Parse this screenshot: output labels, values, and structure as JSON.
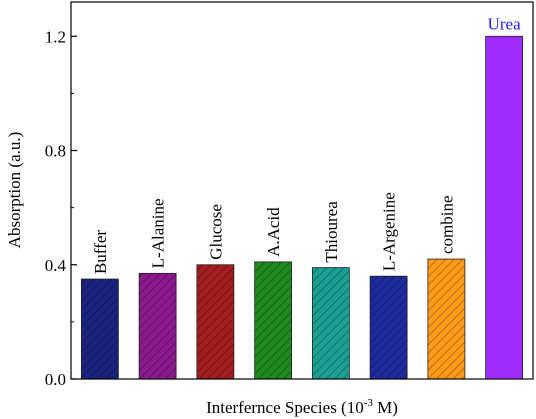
{
  "chart_data": {
    "type": "bar",
    "xlabel_parts": [
      "Interfernce Species (10",
      "-3",
      " M)"
    ],
    "ylabel": "Absorption (a.u.)",
    "ylim": [
      0,
      1.2
    ],
    "yticks": [
      "0.0",
      "0.4",
      "0.8",
      "1.2"
    ],
    "grid": false,
    "categories": [
      "Buffer",
      "L-Alanine",
      "Glucose",
      "A.Acid",
      "Thiourea",
      "L-Argenine",
      "combine",
      "Urea"
    ],
    "values": [
      0.35,
      0.37,
      0.4,
      0.41,
      0.39,
      0.36,
      0.42,
      1.2
    ],
    "colors": [
      "#1a237e",
      "#8b1a8f",
      "#a31d1d",
      "#1f8a1f",
      "#1b9e93",
      "#1f2a9e",
      "#ff9a1a",
      "#a02bff"
    ],
    "hatched": [
      true,
      true,
      true,
      true,
      true,
      true,
      true,
      false
    ],
    "label_colors": [
      "#000000",
      "#000000",
      "#000000",
      "#000000",
      "#000000",
      "#000000",
      "#000000",
      "#1a1aff"
    ],
    "label_orientation": [
      "vertical",
      "vertical",
      "vertical",
      "vertical",
      "vertical",
      "vertical",
      "vertical",
      "horizontal"
    ]
  }
}
